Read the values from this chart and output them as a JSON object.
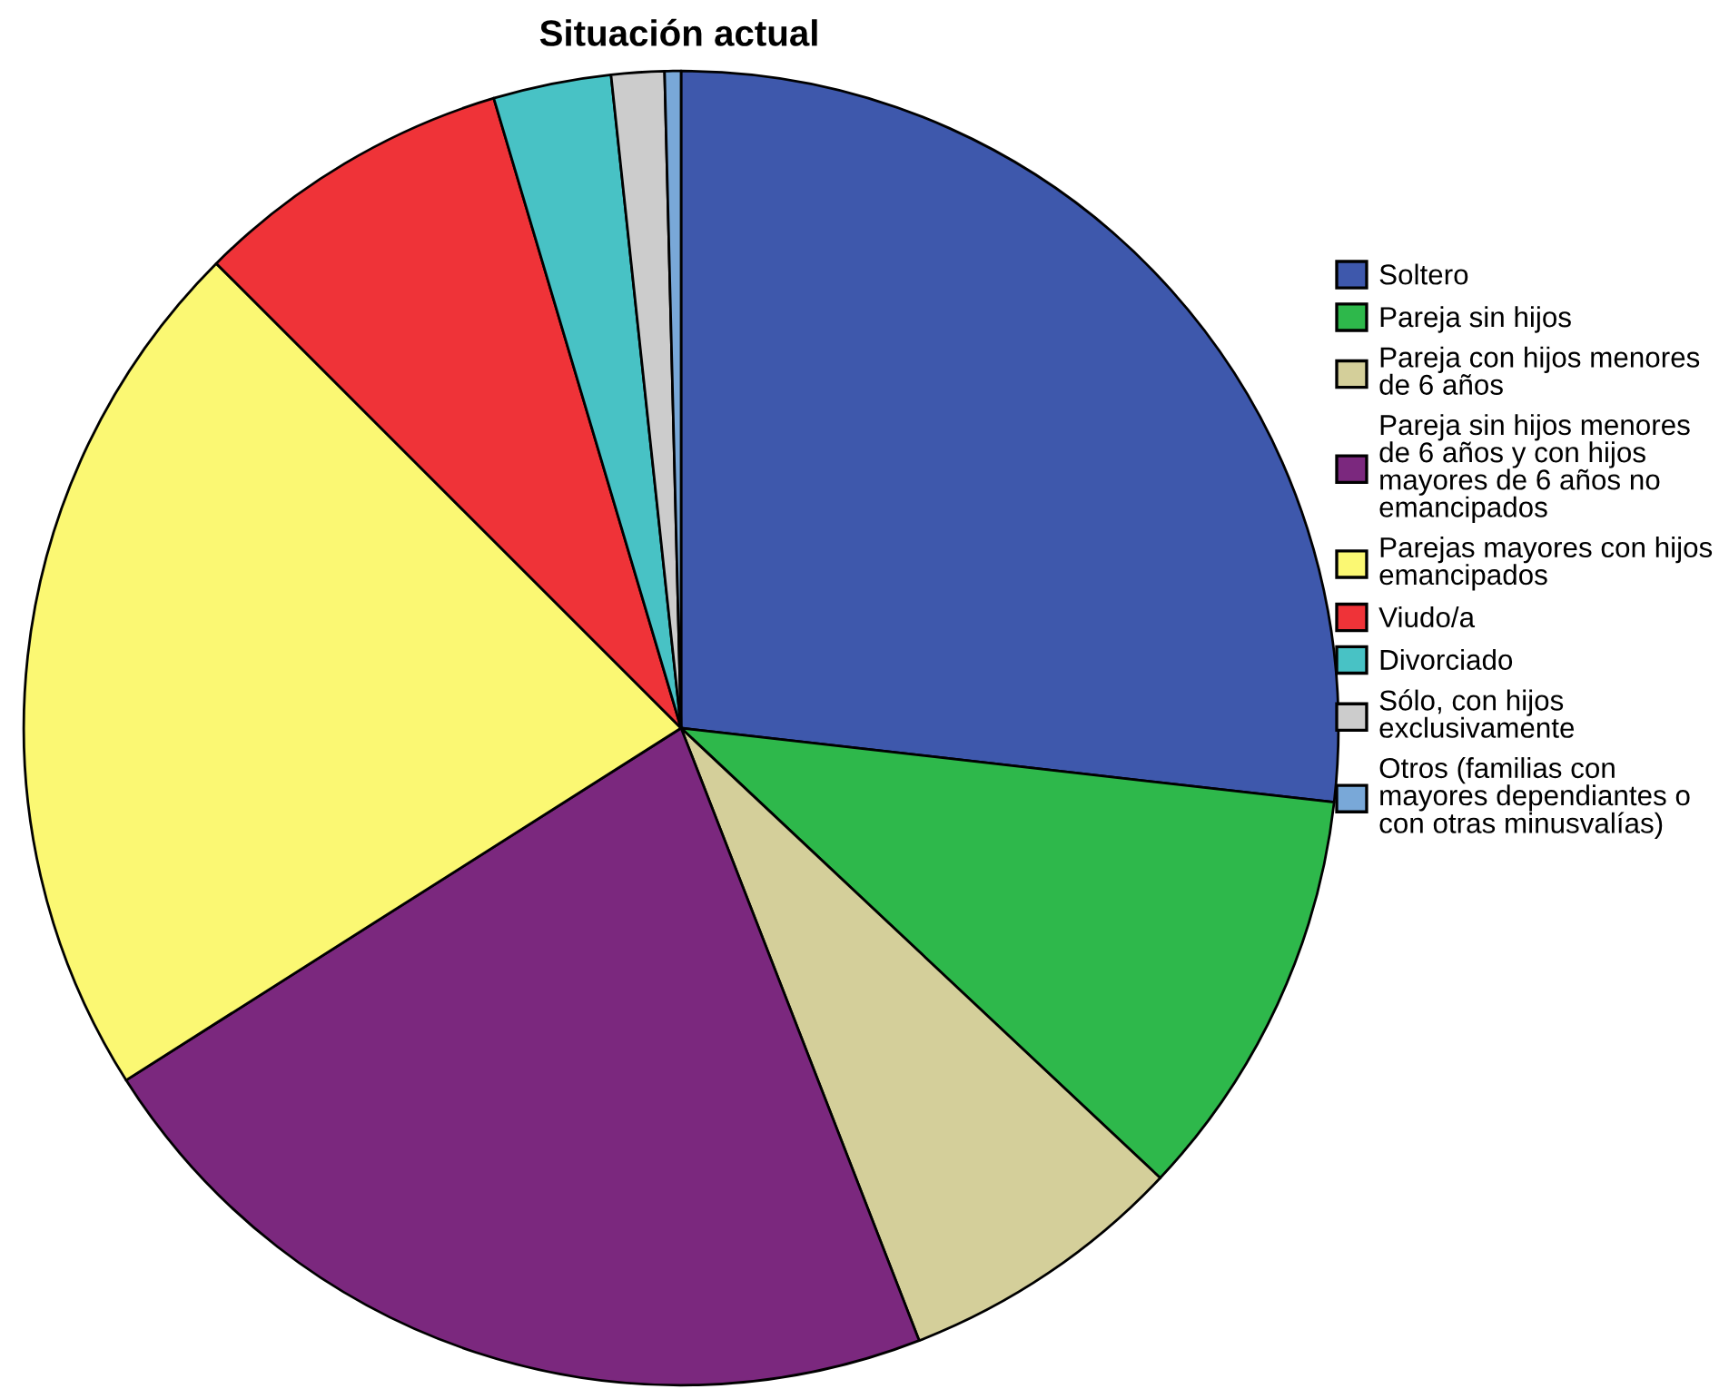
{
  "chart_data": {
    "type": "pie",
    "title": "Situación actual",
    "categories": [
      "Soltero",
      "Pareja sin hijos",
      "Pareja con hijos menores\nde 6 años",
      "Pareja sin hijos menores\nde 6 años y con hijos\nmayores de 6 años no\nemancipados",
      "Parejas mayores con hijos\nemancipados",
      "Viudo/a",
      "Divorciado",
      "Sólo, con hijos\nexclusivamente",
      "Otros (familias con\nmayores dependiantes o\ncon otras minusvalías)"
    ],
    "values": [
      26.8,
      10.2,
      7.1,
      21.9,
      21.5,
      7.9,
      2.9,
      1.3,
      0.4
    ],
    "colors": [
      "#3e58ac",
      "#2eb84b",
      "#d4cf9a",
      "#7b287e",
      "#fbf873",
      "#ef3338",
      "#48c2c5",
      "#cccccc",
      "#79a8d8"
    ],
    "legend": "right"
  }
}
